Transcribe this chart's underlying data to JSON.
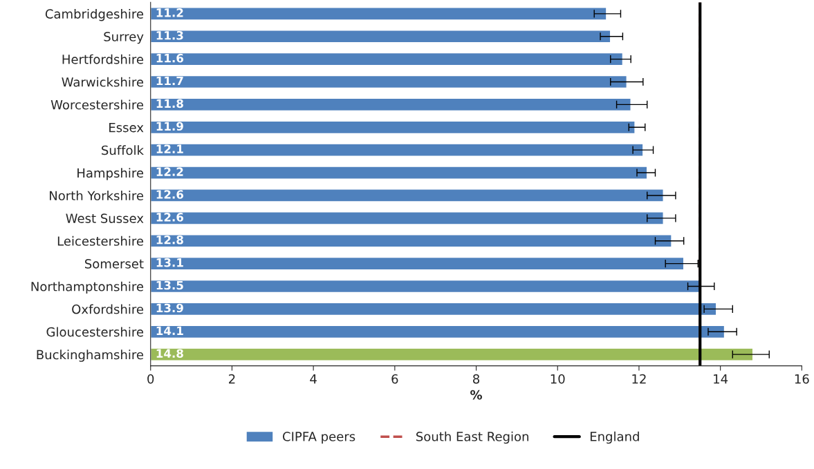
{
  "chart_data": {
    "type": "bar",
    "orientation": "horizontal",
    "xlabel": "%",
    "categories": [
      "Cambridgeshire",
      "Surrey",
      "Hertfordshire",
      "Warwickshire",
      "Worcestershire",
      "Essex",
      "Suffolk",
      "Hampshire",
      "North Yorkshire",
      "West Sussex",
      "Leicestershire",
      "Somerset",
      "Northamptonshire",
      "Oxfordshire",
      "Gloucestershire",
      "Buckinghamshire"
    ],
    "series": [
      {
        "name": "CIPFA peers",
        "color": "#4f81bd",
        "colors": [
          "#4f81bd",
          "#4f81bd",
          "#4f81bd",
          "#4f81bd",
          "#4f81bd",
          "#4f81bd",
          "#4f81bd",
          "#4f81bd",
          "#4f81bd",
          "#4f81bd",
          "#4f81bd",
          "#4f81bd",
          "#4f81bd",
          "#4f81bd",
          "#4f81bd",
          "#9bbb59"
        ],
        "values": [
          11.2,
          11.3,
          11.6,
          11.7,
          11.8,
          11.9,
          12.1,
          12.2,
          12.6,
          12.6,
          12.8,
          13.1,
          13.5,
          13.9,
          14.1,
          14.8
        ],
        "errors": [
          [
            10.9,
            11.55
          ],
          [
            11.05,
            11.6
          ],
          [
            11.3,
            11.8
          ],
          [
            11.3,
            12.1
          ],
          [
            11.45,
            12.2
          ],
          [
            11.75,
            12.15
          ],
          [
            11.85,
            12.35
          ],
          [
            11.95,
            12.4
          ],
          [
            12.2,
            12.9
          ],
          [
            12.2,
            12.9
          ],
          [
            12.4,
            13.1
          ],
          [
            12.65,
            13.45
          ],
          [
            13.2,
            13.85
          ],
          [
            13.6,
            14.3
          ],
          [
            13.7,
            14.4
          ],
          [
            14.3,
            15.2
          ]
        ]
      }
    ],
    "data_labels": true,
    "ref_lines": [
      {
        "axis": "x",
        "value": 13.5,
        "label": "South East Region",
        "color": "#c0504d",
        "line_style": "dashed"
      },
      {
        "axis": "x",
        "value": 13.5,
        "label": "England",
        "color": "#000000",
        "line_style": "solid"
      }
    ],
    "xlim": [
      0,
      16
    ],
    "xticks": [
      0,
      2,
      4,
      6,
      8,
      10,
      12,
      14,
      16
    ],
    "grid": false,
    "legend": "bottom"
  }
}
